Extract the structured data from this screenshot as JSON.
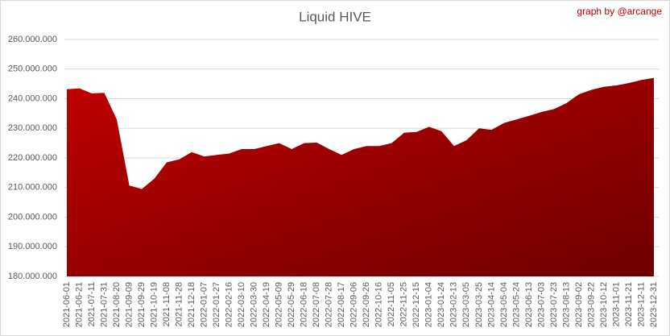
{
  "chart_data": {
    "type": "area",
    "title": "Liquid HIVE",
    "annotation": "graph by @arcange",
    "color": "#c00000",
    "color_dark": "#6e0000",
    "categories": [
      "2021-06-01",
      "2021-06-21",
      "2021-07-11",
      "2021-07-31",
      "2021-08-20",
      "2021-09-09",
      "2021-09-29",
      "2021-10-19",
      "2021-11-08",
      "2021-11-28",
      "2021-12-18",
      "2022-01-07",
      "2022-01-27",
      "2022-02-16",
      "2022-03-10",
      "2022-03-30",
      "2022-04-19",
      "2022-05-09",
      "2022-05-29",
      "2022-06-18",
      "2022-07-08",
      "2022-07-28",
      "2022-08-17",
      "2022-09-06",
      "2022-09-26",
      "2022-10-16",
      "2022-11-05",
      "2022-11-25",
      "2022-12-15",
      "2023-01-04",
      "2023-01-24",
      "2023-02-13",
      "2023-03-05",
      "2023-03-25",
      "2023-04-14",
      "2023-05-04",
      "2023-05-24",
      "2023-06-13",
      "2023-07-03",
      "2023-07-23",
      "2023-08-13",
      "2023-09-02",
      "2023-09-22",
      "2023-10-12",
      "2023-11-01",
      "2023-11-21",
      "2023-12-11",
      "2023-12-31"
    ],
    "values": [
      243200000,
      243500000,
      241800000,
      242000000,
      233000000,
      210700000,
      209500000,
      213000000,
      218500000,
      219500000,
      222000000,
      220500000,
      221000000,
      221500000,
      223000000,
      223000000,
      224000000,
      225000000,
      223000000,
      225000000,
      225200000,
      223000000,
      221000000,
      223000000,
      224000000,
      224000000,
      225000000,
      228500000,
      228800000,
      230500000,
      229000000,
      224000000,
      226000000,
      230000000,
      229500000,
      231800000,
      233000000,
      234200000,
      235500000,
      236500000,
      238500000,
      241500000,
      243000000,
      244000000,
      244500000,
      245300000,
      246300000,
      247000000
    ],
    "ylim": [
      180000000,
      260000000
    ],
    "yticks": [
      {
        "value": 180000000,
        "label": "180.000.000"
      },
      {
        "value": 190000000,
        "label": "190.000.000"
      },
      {
        "value": 200000000,
        "label": "200.000.000"
      },
      {
        "value": 210000000,
        "label": "210.000.000"
      },
      {
        "value": 220000000,
        "label": "220.000.000"
      },
      {
        "value": 230000000,
        "label": "230.000.000"
      },
      {
        "value": 240000000,
        "label": "240.000.000"
      },
      {
        "value": 250000000,
        "label": "250.000.000"
      },
      {
        "value": 260000000,
        "label": "260.000.000"
      }
    ],
    "grid": true
  }
}
